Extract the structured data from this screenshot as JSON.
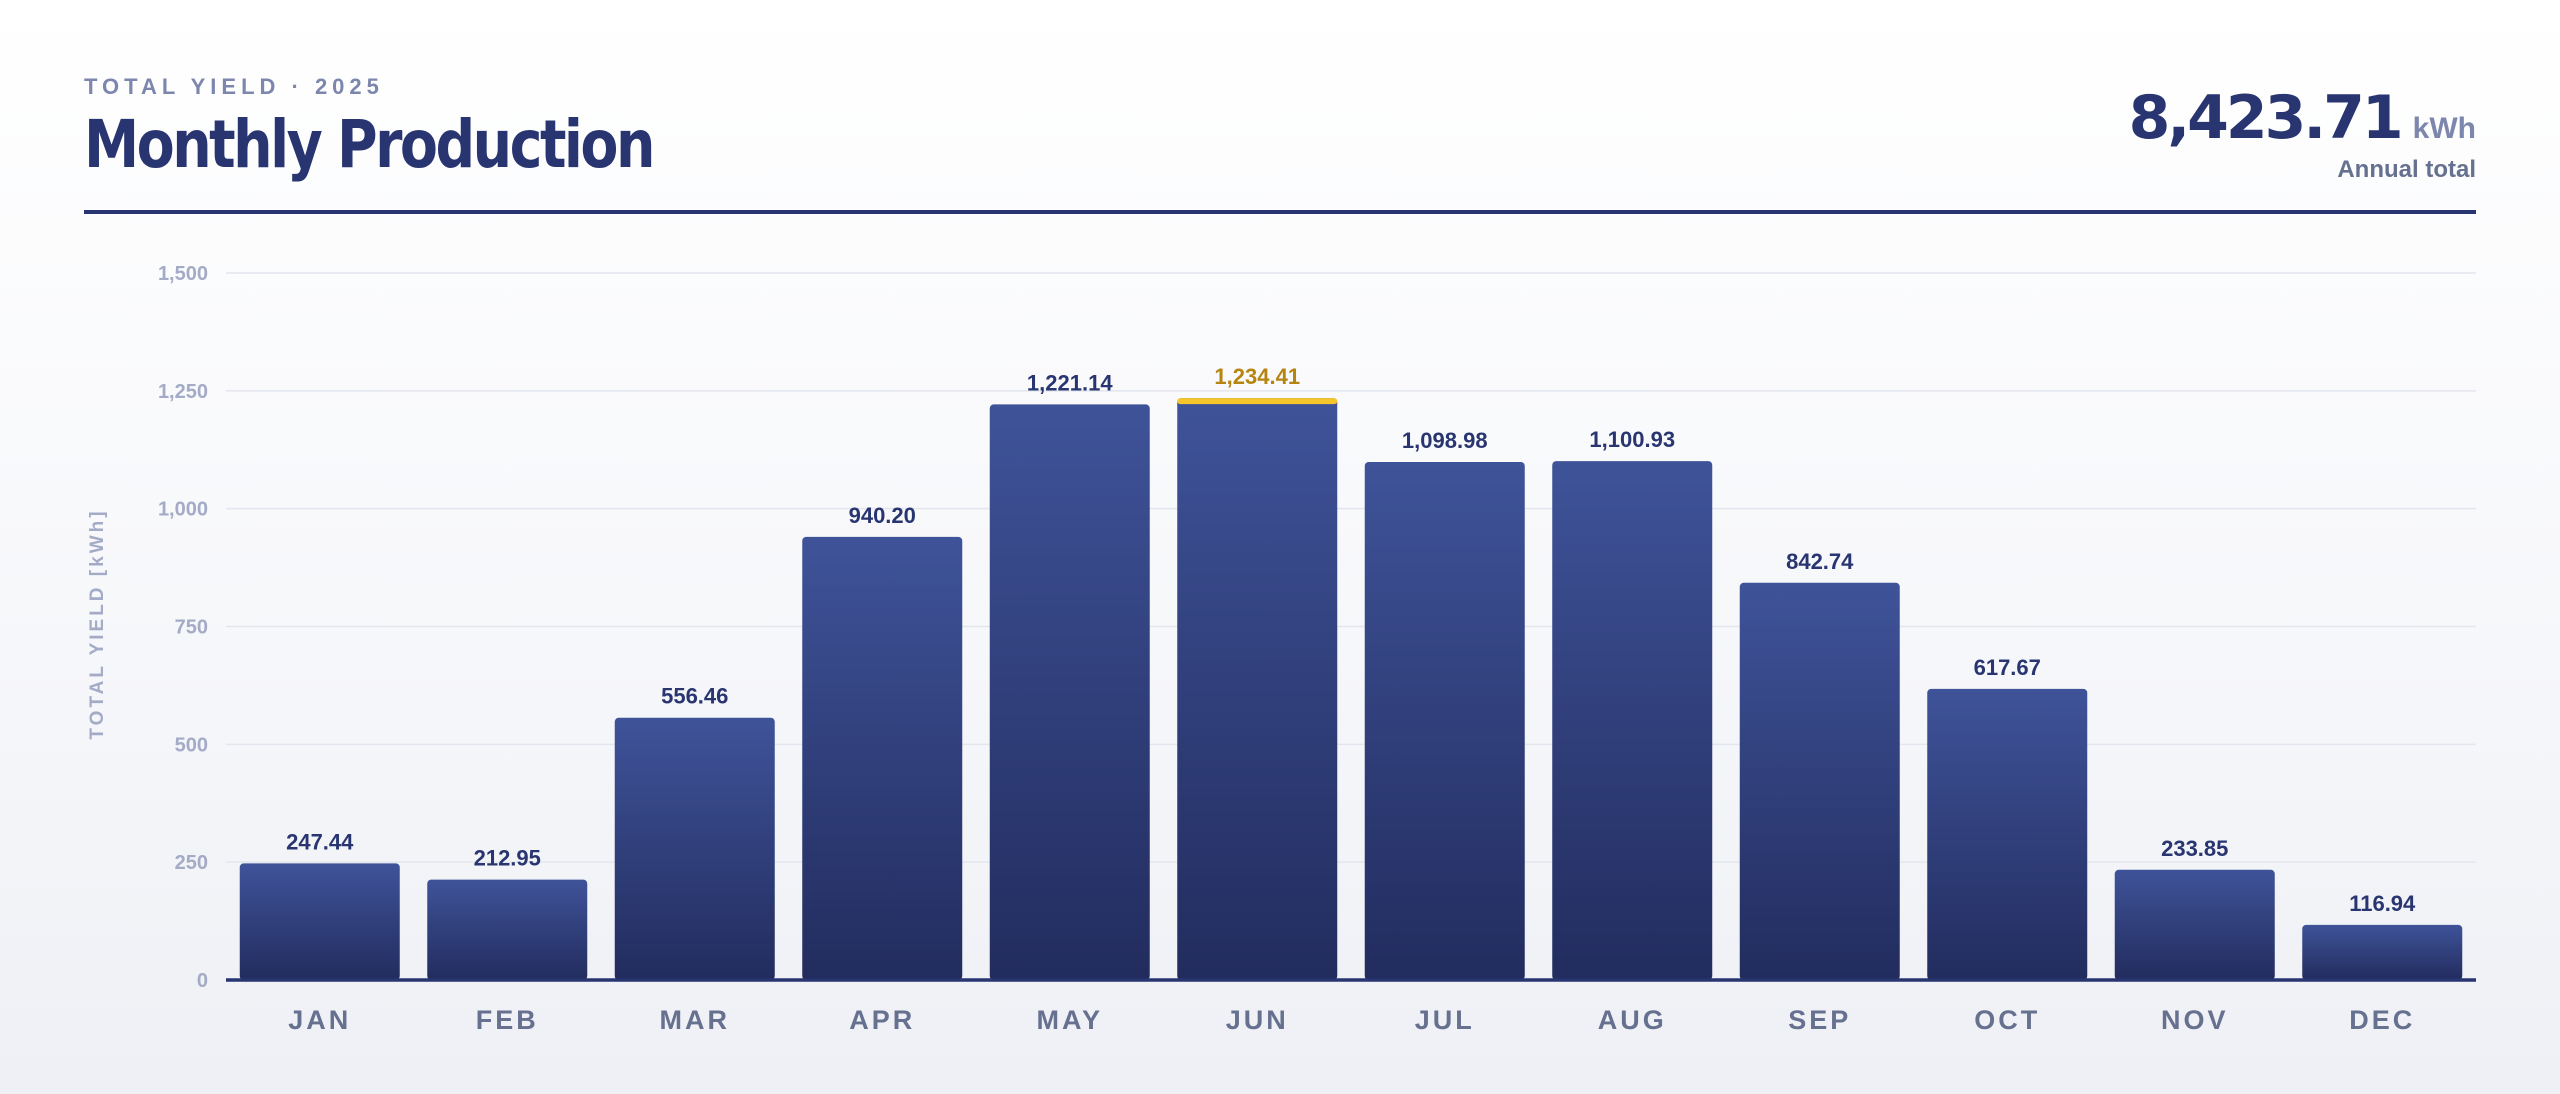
{
  "header": {
    "eyebrow": "TOTAL YIELD · 2025",
    "title": "Monthly Production",
    "total_value": "8,423.71",
    "total_unit": "kWh",
    "total_caption": "Annual total"
  },
  "colors": {
    "bar_top": "#3f5399",
    "bar_bottom": "#222c5e",
    "highlight": "#f5c62b",
    "highlight_label": "#b5850f",
    "value_label": "#283570",
    "axis": "#283570",
    "grid": "#e3e6ee",
    "tick": "#a3abc6",
    "category": "#66708f"
  },
  "chart_data": {
    "type": "bar",
    "title": "Monthly Production",
    "xlabel": "",
    "ylabel": "TOTAL YIELD [kWh]",
    "ylim": [
      0,
      1500
    ],
    "yticks": [
      0,
      250,
      500,
      750,
      1000,
      1250,
      1500
    ],
    "ytick_labels": [
      "0",
      "250",
      "500",
      "750",
      "1,000",
      "1,250",
      "1,500"
    ],
    "grid": true,
    "categories": [
      "JAN",
      "FEB",
      "MAR",
      "APR",
      "MAY",
      "JUN",
      "JUL",
      "AUG",
      "SEP",
      "OCT",
      "NOV",
      "DEC"
    ],
    "values": [
      247.44,
      212.95,
      556.46,
      940.2,
      1221.14,
      1234.41,
      1098.98,
      1100.93,
      842.74,
      617.67,
      233.85,
      116.94
    ],
    "value_labels": [
      "247.44",
      "212.95",
      "556.46",
      "940.20",
      "1,221.14",
      "1,234.41",
      "1,098.98",
      "1,100.93",
      "842.74",
      "617.67",
      "233.85",
      "116.94"
    ],
    "highlight_category": "JUN"
  }
}
